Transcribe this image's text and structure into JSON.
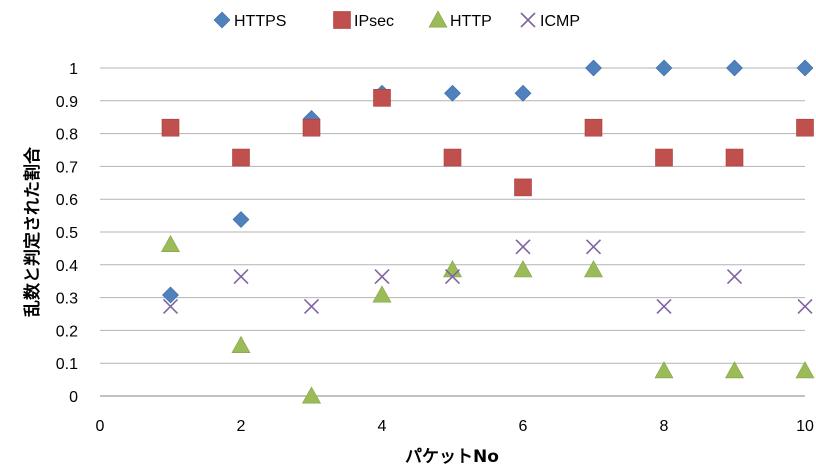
{
  "chart_data": {
    "type": "scatter",
    "title": "",
    "xlabel": "パケットNo",
    "ylabel": "乱数と判定された割合",
    "xlim": [
      0,
      10
    ],
    "ylim": [
      0,
      1
    ],
    "xticks": [
      0,
      2,
      4,
      6,
      8,
      10
    ],
    "yticks": [
      0,
      0.1,
      0.2,
      0.3,
      0.4,
      0.5,
      0.6,
      0.7,
      0.8,
      0.9,
      1
    ],
    "grid": "horizontal",
    "legend_position": "top",
    "series": [
      {
        "name": "HTTPS",
        "marker": "diamond",
        "color": "#4F81BD",
        "x": [
          1,
          2,
          3,
          4,
          5,
          6,
          7,
          8,
          9,
          10
        ],
        "y": [
          0.308,
          0.538,
          0.846,
          0.923,
          0.923,
          0.923,
          1,
          1,
          1,
          1
        ]
      },
      {
        "name": "IPsec",
        "marker": "square",
        "color": "#C0504D",
        "x": [
          1,
          2,
          3,
          4,
          5,
          6,
          7,
          8,
          9,
          10
        ],
        "y": [
          0.818,
          0.727,
          0.818,
          0.909,
          0.727,
          0.636,
          0.818,
          0.727,
          0.727,
          0.818
        ]
      },
      {
        "name": "HTTP",
        "marker": "triangle",
        "color": "#9BBB59",
        "x": [
          1,
          2,
          3,
          4,
          5,
          6,
          7,
          8,
          9,
          10
        ],
        "y": [
          0.462,
          0.154,
          0,
          0.308,
          0.385,
          0.385,
          0.385,
          0.077,
          0.077,
          0.077
        ]
      },
      {
        "name": "ICMP",
        "marker": "x",
        "color": "#8064A2",
        "x": [
          1,
          2,
          3,
          4,
          5,
          6,
          7,
          8,
          9,
          10
        ],
        "y": [
          0.273,
          0.364,
          0.273,
          0.364,
          0.364,
          0.455,
          0.455,
          0.273,
          0.364,
          0.273
        ]
      }
    ]
  }
}
